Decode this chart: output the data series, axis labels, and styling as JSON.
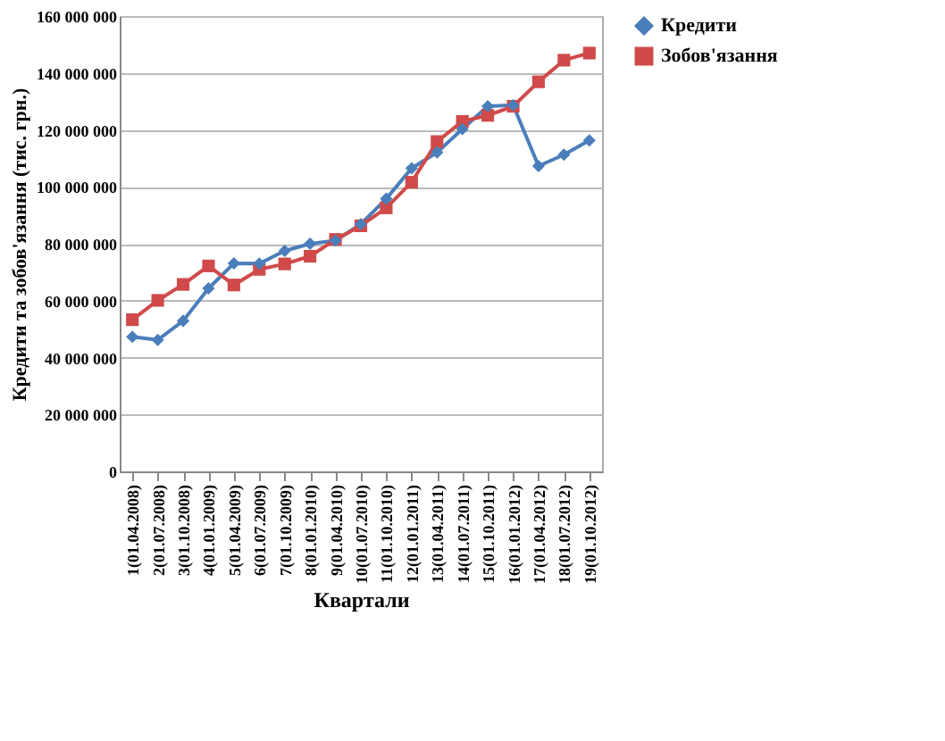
{
  "chart_data": {
    "type": "line",
    "xlabel": "Квартали",
    "ylabel": "Кредити та зобов'язання (тис. грн.)",
    "categories": [
      "1(01.04.2008)",
      "2(01.07.2008)",
      "3(01.10.2008)",
      "4(01.01.2009)",
      "5(01.04.2009)",
      "6(01.07.2009)",
      "7(01.10.2009)",
      "8(01.01.2010)",
      "9(01.04.2010)",
      "10(01.07.2010)",
      "11(01.10.2010)",
      "12(01.01.2011)",
      "13(01.04.2011)",
      "14(01.07.2011)",
      "15(01.10.2011)",
      "16(01.01.2012)",
      "17(01.04.2012)",
      "18(01.07.2012)",
      "19(01.10.2012)"
    ],
    "series": [
      {
        "name": "Кредити",
        "color": "#4a7ebb",
        "marker": "diamond",
        "values": [
          47300000,
          46200000,
          52900000,
          64300000,
          73100000,
          73000000,
          77500000,
          80000000,
          81100000,
          86900000,
          95800000,
          106500000,
          112100000,
          120300000,
          128300000,
          128700000,
          107300000,
          111300000,
          116300000
        ]
      },
      {
        "name": "Зобов'язання",
        "color": "#d04a4a",
        "marker": "square",
        "values": [
          53300000,
          60100000,
          65700000,
          72200000,
          65500000,
          71000000,
          72900000,
          75600000,
          81500000,
          86300000,
          92600000,
          101600000,
          115900000,
          123000000,
          125100000,
          128300000,
          136900000,
          144500000,
          147000000
        ]
      }
    ],
    "ylim": [
      0,
      160000000
    ],
    "yticks": [
      0,
      {
        "value": 20000000,
        "label": "20 000 000"
      },
      {
        "value": 40000000,
        "label": "40 000 000"
      },
      {
        "value": 60000000,
        "label": "60 000 000"
      },
      {
        "value": 80000000,
        "label": "80 000 000"
      },
      {
        "value": 100000000,
        "label": "100 000 000"
      },
      {
        "value": 120000000,
        "label": "120 000 000"
      },
      {
        "value": 140000000,
        "label": "140 000 000"
      },
      {
        "value": 160000000,
        "label": "160 000 000"
      }
    ],
    "grid": "y",
    "legend": "right",
    "line_style": "solid"
  }
}
